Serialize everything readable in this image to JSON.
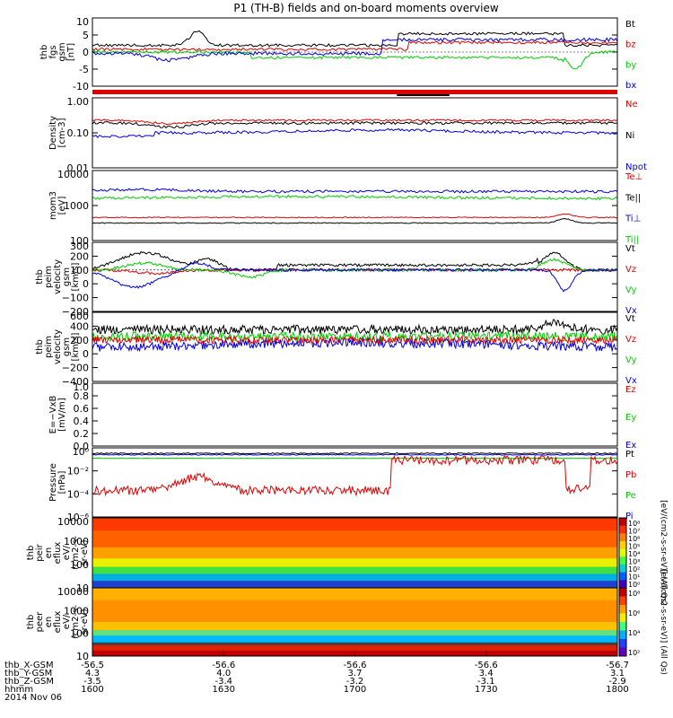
{
  "title": "P1 (TH-B) fields and on-board moments overview",
  "colors": {
    "black": "#000000",
    "red": "#e00000",
    "green": "#00cc00",
    "blue": "#0000dd"
  },
  "chart_data": [
    {
      "type": "line",
      "ylabel": [
        "thb",
        "fgs",
        "gsm",
        "[nT]"
      ],
      "yticks": [
        "10",
        "5",
        "0",
        "-5",
        "-10"
      ],
      "legend": [
        {
          "name": "Bt",
          "color": "#000000"
        },
        {
          "name": "bz",
          "color": "#e00000"
        },
        {
          "name": "by",
          "color": "#00cc00"
        },
        {
          "name": "bx",
          "color": "#0000dd"
        }
      ]
    },
    {
      "type": "line",
      "ylabel": [
        "Density",
        "[cm-3]"
      ],
      "yscale": "log",
      "yticks": [
        "1.00",
        "0.10",
        "0.01"
      ],
      "legend": [
        {
          "name": "Ne",
          "color": "#e00000"
        },
        {
          "name": "Ni",
          "color": "#000000"
        },
        {
          "name": "Npot",
          "color": "#0000dd"
        }
      ]
    },
    {
      "type": "line",
      "ylabel": [
        "mom3",
        "[eV]"
      ],
      "yscale": "log",
      "yticks": [
        "10000",
        "1000",
        "100"
      ],
      "legend": [
        {
          "name": "Te⊥",
          "color": "#e00000"
        },
        {
          "name": "Te||",
          "color": "#000000"
        },
        {
          "name": "Ti⊥",
          "color": "#0000dd"
        },
        {
          "name": "Ti||",
          "color": "#00cc00"
        }
      ]
    },
    {
      "type": "line",
      "ylabel": [
        "thb",
        "peim",
        "velocity",
        "gsm",
        "[km/s]"
      ],
      "yticks": [
        "300",
        "200",
        "100",
        "0",
        "−100",
        "−200"
      ],
      "legend": [
        {
          "name": "Vt",
          "color": "#000000"
        },
        {
          "name": "Vz",
          "color": "#e00000"
        },
        {
          "name": "Vy",
          "color": "#00cc00"
        },
        {
          "name": "Vx",
          "color": "#0000dd"
        }
      ]
    },
    {
      "type": "line",
      "ylabel": [
        "thb",
        "peim",
        "velocity",
        "gsm",
        "[km/s]"
      ],
      "yticks": [
        "600",
        "400",
        "200",
        "0",
        "−200",
        "−400"
      ],
      "legend": [
        {
          "name": "Vt",
          "color": "#000000"
        },
        {
          "name": "Vz",
          "color": "#e00000"
        },
        {
          "name": "Vy",
          "color": "#00cc00"
        },
        {
          "name": "Vx",
          "color": "#0000dd"
        }
      ]
    },
    {
      "type": "line",
      "ylabel": [
        "E=−VxB",
        "[mV/m]"
      ],
      "yticks": [
        "1.0",
        "0.8",
        "0.6",
        "0.4",
        "0.2",
        "0.0"
      ],
      "legend": [
        {
          "name": "Ez",
          "color": "#e00000"
        },
        {
          "name": "Ey",
          "color": "#00cc00"
        },
        {
          "name": "Ex",
          "color": "#0000dd"
        }
      ]
    },
    {
      "type": "line",
      "ylabel": [
        "Pressure",
        "[nPa]"
      ],
      "yscale": "log",
      "yticks": [
        "10⁰",
        "10⁻²",
        "10⁻⁴",
        "10⁻⁶"
      ],
      "legend": [
        {
          "name": "Pt",
          "color": "#000000"
        },
        {
          "name": "Pb",
          "color": "#e00000"
        },
        {
          "name": "Pe",
          "color": "#00cc00"
        },
        {
          "name": "Pi",
          "color": "#0000dd"
        }
      ]
    },
    {
      "type": "heatmap",
      "ylabel": [
        "thb",
        "peir",
        "en",
        "eflux",
        "eV/",
        "(cm2-s-",
        "sr-eV)"
      ],
      "yticks": [
        "10000",
        "1000",
        "100",
        "10"
      ],
      "colorbar_ticks": [
        "10⁸",
        "10⁷",
        "10⁶",
        "10⁵",
        "10⁴",
        "10³",
        "10²",
        "10¹",
        "10⁰"
      ],
      "colorbar_label": "[eV/(cm2-s-sr-eV)] (All Qs)"
    },
    {
      "type": "heatmap",
      "ylabel": [
        "thb",
        "peer",
        "en",
        "eflux",
        "eV/",
        "(cm2-s-",
        "sr-eV)"
      ],
      "yticks": [
        "10000",
        "1000",
        "100",
        "10"
      ],
      "colorbar_ticks": [
        "10⁸",
        "10⁶",
        "10⁴",
        "10²"
      ],
      "colorbar_label": "[eV/(cm2-s-sr-eV)] (All Qs)"
    }
  ],
  "x_axis": {
    "rows": [
      {
        "label": "thb_X-GSM",
        "values": [
          "-56.5",
          "-56.6",
          "-56.6",
          "-56.6",
          "-56.7"
        ]
      },
      {
        "label": "thb_Y-GSM",
        "values": [
          "4.3",
          "4.0",
          "3.7",
          "3.4",
          "3.1"
        ]
      },
      {
        "label": "thb_Z-GSM",
        "values": [
          "-3.5",
          "-3.4",
          "-3.2",
          "-3.1",
          "-2.9"
        ]
      },
      {
        "label": "hhmm",
        "values": [
          "1600",
          "1630",
          "1700",
          "1730",
          "1800"
        ]
      }
    ],
    "date": "2014 Nov 06"
  }
}
